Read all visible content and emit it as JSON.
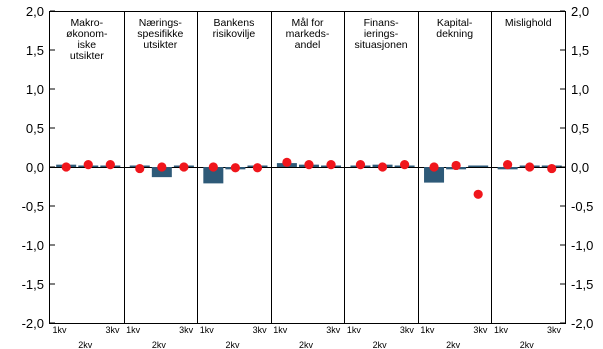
{
  "chart_data": {
    "type": "bar",
    "ylim": [
      -2,
      2
    ],
    "y_ticks": [
      "2,0",
      "1,5",
      "1,0",
      "0,5",
      "0,0",
      "-0,5",
      "-1,0",
      "-1,5",
      "-2,0"
    ],
    "colors": {
      "bar": "#2e5a78",
      "dot": "#f0161c",
      "frame": "#000000"
    },
    "grid": false,
    "panels": [
      {
        "title_lines": [
          "Makro-",
          "økonom-",
          "iske",
          "utsikter"
        ],
        "bars": [
          0.03,
          0.01,
          0.01
        ],
        "dots": [
          0.0,
          0.03,
          0.03
        ],
        "ticks": [
          "1kv",
          "2kv",
          "3kv"
        ]
      },
      {
        "title_lines": [
          "Nærings-",
          "spesifikke",
          "utsikter"
        ],
        "bars": [
          0.0,
          -0.13,
          0.0
        ],
        "dots": [
          -0.02,
          0.0,
          0.0
        ],
        "ticks": [
          "1kv",
          "2kv",
          "3kv"
        ]
      },
      {
        "title_lines": [
          "Bankens",
          "risikovilje"
        ],
        "bars": [
          -0.21,
          -0.03,
          0.0
        ],
        "dots": [
          0.0,
          -0.01,
          -0.01
        ],
        "ticks": [
          "1kv",
          "2kv",
          "3kv"
        ]
      },
      {
        "title_lines": [
          "Mål for",
          "markeds-",
          "andel"
        ],
        "bars": [
          0.05,
          0.03,
          0.01
        ],
        "dots": [
          0.06,
          0.03,
          0.03
        ],
        "ticks": [
          "1kv",
          "2kv",
          "3kv"
        ]
      },
      {
        "title_lines": [
          "Finans-",
          "ierings-",
          "situasjonen"
        ],
        "bars": [
          0.0,
          0.03,
          0.0
        ],
        "dots": [
          0.03,
          0.0,
          0.03
        ],
        "ticks": [
          "1kv",
          "2kv",
          "3kv"
        ]
      },
      {
        "title_lines": [
          "Kapital-",
          "dekning"
        ],
        "bars": [
          -0.2,
          -0.03,
          0.0
        ],
        "dots": [
          0.0,
          0.02,
          -0.35
        ],
        "ticks": [
          "1kv",
          "2kv",
          "3kv"
        ]
      },
      {
        "title_lines": [
          "Mislighold"
        ],
        "bars": [
          -0.03,
          0.0,
          0.0
        ],
        "dots": [
          0.03,
          0.0,
          -0.02
        ],
        "ticks": [
          "1kv",
          "2kv",
          "3kv"
        ]
      }
    ]
  }
}
